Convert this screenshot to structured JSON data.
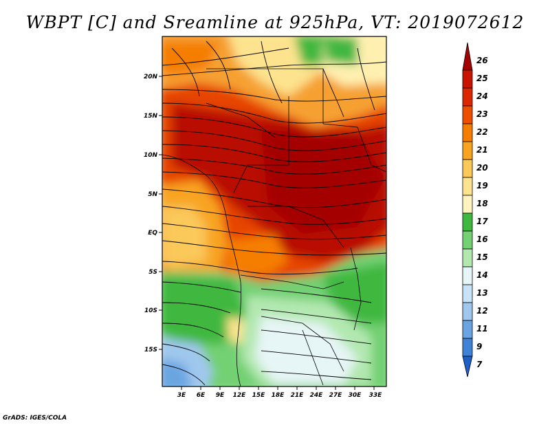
{
  "title": "WBPT [C] and Sreamline at 925hPa, VT: 2019072612",
  "footer": "GrADS: IGES/COLA",
  "map": {
    "variable": "WBPT",
    "units": "C",
    "level": "925hPa",
    "valid_time": "2019072612",
    "lon_ticks": [
      "3E",
      "6E",
      "9E",
      "12E",
      "15E",
      "18E",
      "21E",
      "24E",
      "27E",
      "30E",
      "33E"
    ],
    "lat_ticks": [
      "20N",
      "15N",
      "10N",
      "5N",
      "EQ",
      "5S",
      "10S",
      "15S"
    ]
  },
  "colorbar": {
    "labels": [
      "26",
      "25",
      "24",
      "23",
      "22",
      "21",
      "20",
      "19",
      "18",
      "17",
      "16",
      "15",
      "14",
      "13",
      "12",
      "11",
      "9",
      "7"
    ],
    "colors": [
      "#a50000",
      "#c81400",
      "#dc2800",
      "#ee4e00",
      "#f57e00",
      "#f8a420",
      "#fbc85a",
      "#fde38e",
      "#fff4c0",
      "#3fb83f",
      "#73d073",
      "#b2e8b0",
      "#e6f5f5",
      "#c8e3f8",
      "#a0c8ee",
      "#6aa5e2",
      "#3f82d6",
      "#1f5fc8"
    ]
  }
}
